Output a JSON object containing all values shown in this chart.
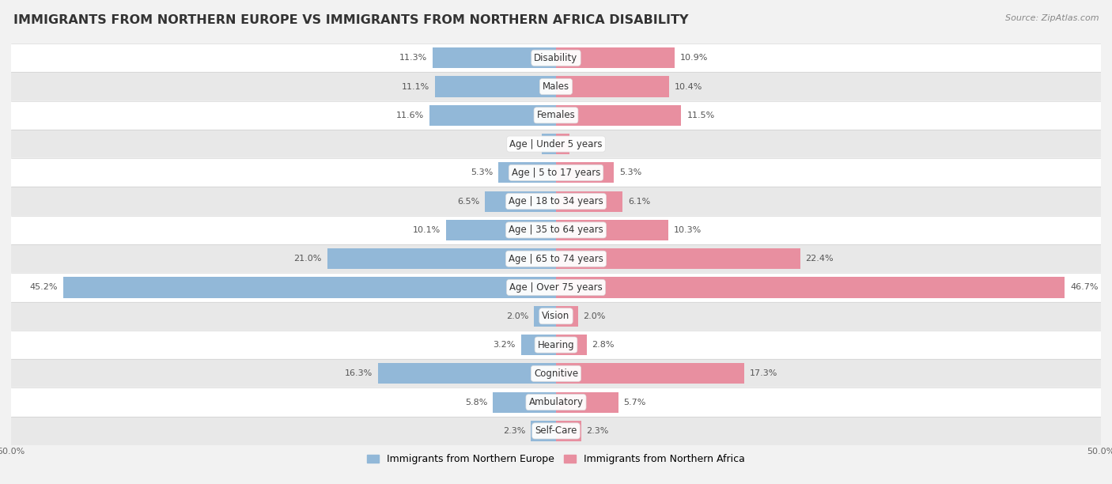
{
  "title": "IMMIGRANTS FROM NORTHERN EUROPE VS IMMIGRANTS FROM NORTHERN AFRICA DISABILITY",
  "source": "Source: ZipAtlas.com",
  "categories": [
    "Disability",
    "Males",
    "Females",
    "Age | Under 5 years",
    "Age | 5 to 17 years",
    "Age | 18 to 34 years",
    "Age | 35 to 64 years",
    "Age | 65 to 74 years",
    "Age | Over 75 years",
    "Vision",
    "Hearing",
    "Cognitive",
    "Ambulatory",
    "Self-Care"
  ],
  "left_values": [
    11.3,
    11.1,
    11.6,
    1.3,
    5.3,
    6.5,
    10.1,
    21.0,
    45.2,
    2.0,
    3.2,
    16.3,
    5.8,
    2.3
  ],
  "right_values": [
    10.9,
    10.4,
    11.5,
    1.2,
    5.3,
    6.1,
    10.3,
    22.4,
    46.7,
    2.0,
    2.8,
    17.3,
    5.7,
    2.3
  ],
  "left_color": "#92b8d8",
  "right_color": "#e88fa0",
  "left_label": "Immigrants from Northern Europe",
  "right_label": "Immigrants from Northern Africa",
  "axis_max": 50.0,
  "bar_height": 0.72,
  "row_bg_light": "#ffffff",
  "row_bg_dark": "#e8e8e8",
  "title_fontsize": 11.5,
  "label_fontsize": 8.5,
  "value_fontsize": 8.0,
  "tick_fontsize": 8.0
}
